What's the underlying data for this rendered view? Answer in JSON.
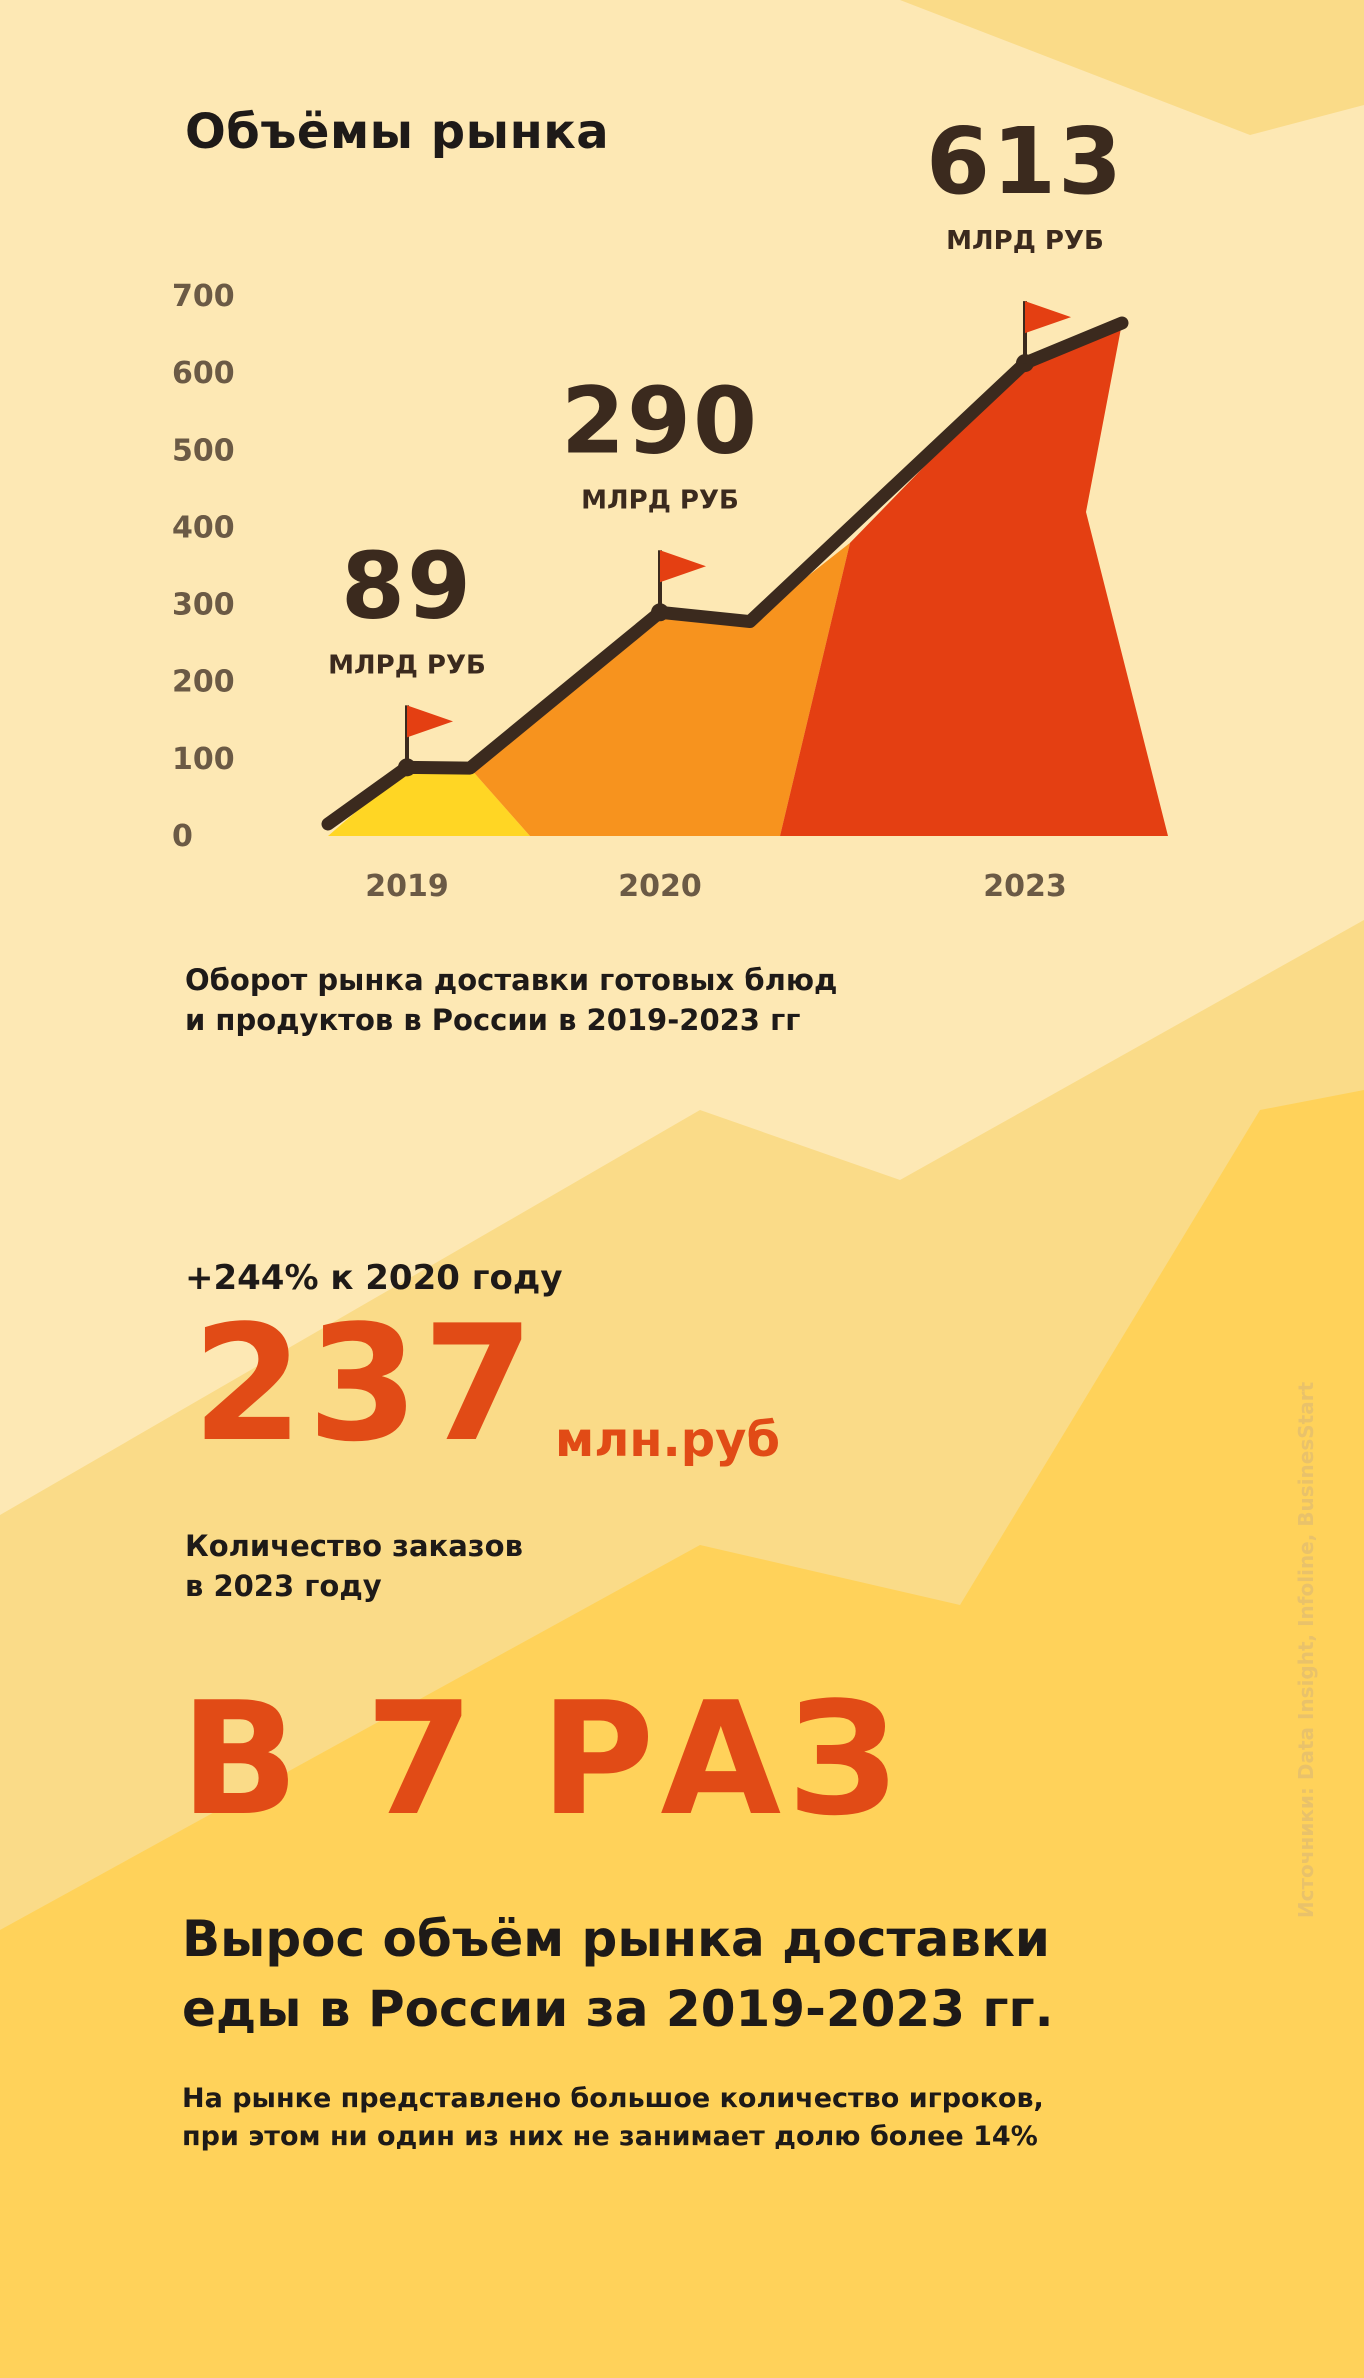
{
  "colors": {
    "background_light": "#fde8b4",
    "background_mid": "#fadb88",
    "background_dark": "#ffd25a",
    "line": "#3b2a1e",
    "area_2019": "#ffd624",
    "area_2020": "#f7931e",
    "area_2023": "#e43f12",
    "flag": "#e43f12",
    "accent": "#e14b16"
  },
  "title": "Объёмы рынка",
  "chart_data": {
    "type": "area",
    "yticks": [
      "0",
      "100",
      "200",
      "300",
      "400",
      "500",
      "600",
      "700"
    ],
    "ylim": [
      0,
      700
    ],
    "categories": [
      "2019",
      "2020",
      "2023"
    ],
    "values": [
      89,
      290,
      613
    ],
    "value_labels": [
      "89",
      "290",
      "613"
    ],
    "unit_label": "МЛРД РУБ",
    "grid": false
  },
  "caption": {
    "line1": "Оборот рынка доставки готовых блюд",
    "line2": "и продуктов в России в 2019-2023 гг"
  },
  "orders": {
    "growth": "+244% к 2020 году",
    "value": "237",
    "unit": "млн.руб",
    "caption_line1": "Количество заказов",
    "caption_line2": "в 2023 году"
  },
  "growth_times": "В 7 РАЗ",
  "headline": {
    "line1": "Вырос объём рынка доставки",
    "line2": "еды в России за 2019-2023 гг."
  },
  "note": {
    "line1": "На рынке представлено большое количество игроков,",
    "line2": "при этом ни один из них не занимает долю более 14%"
  },
  "sources": "Источники: Data Insight, Infoline, BusinesStart"
}
